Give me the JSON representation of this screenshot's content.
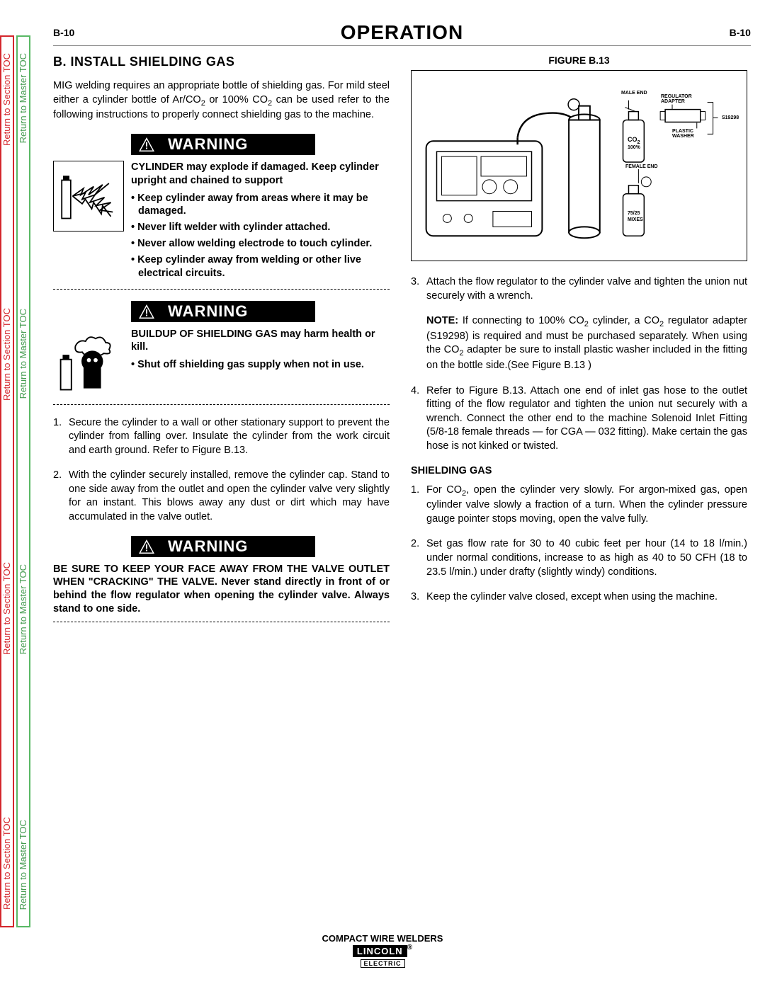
{
  "sidebar": {
    "red_label": "Return to Section TOC",
    "green_label": "Return to Master TOC"
  },
  "header": {
    "page_left": "B-10",
    "title": "OPERATION",
    "page_right": "B-10"
  },
  "left": {
    "section_title": "B. INSTALL SHIELDING GAS",
    "intro_html": "MIG welding requires an appropriate bottle of shielding gas. For mild steel either a cylinder bottle of Ar/CO<span class='sub'>2</span> or 100% CO<span class='sub'>2</span> can be used refer to the following instructions to properly connect shielding gas to the machine.",
    "warning_label": "WARNING",
    "warn1_head": "CYLINDER may explode if damaged. Keep cylinder upright and chained to support",
    "warn1_b1": "Keep cylinder away from areas where it may be damaged.",
    "warn1_b2": "Never lift welder with cylinder attached.",
    "warn1_b3": "Never allow welding electrode to touch cylinder.",
    "warn1_b4": "Keep cylinder away from welding or other live electrical circuits.",
    "warn2_head": "BUILDUP OF SHIELDING GAS may harm health or kill.",
    "warn2_b1": "Shut off shielding gas supply when not in use.",
    "step1": "Secure the cylinder to a wall or other stationary support to prevent the cylinder from falling over. Insulate the cylinder from the work circuit and earth ground. Refer to Figure B.13.",
    "step2": "With the cylinder securely installed, remove the cylinder cap. Stand to one side away from the outlet and open the cylinder valve very slightly for an instant. This blows away any dust or dirt which may have accumulated in the valve outlet.",
    "warn3_html": "BE SURE TO KEEP YOUR FACE AWAY FROM THE VALVE OUTLET WHEN \"CRACKING\" THE VALVE. Never stand directly in front of or behind the flow regulator when opening the cylinder valve. Always stand to one side."
  },
  "right": {
    "figure_title": "FIGURE  B.13",
    "fig_labels": {
      "male": "MALE END",
      "female": "FEMALE END",
      "co2": "CO",
      "co2_sub": "2",
      "pct": "100%",
      "mix1": "75/25",
      "mix2": "MIXES",
      "reg": "REGULATOR ADAPTER",
      "washer": "PLASTIC WASHER",
      "part": "S19298"
    },
    "step3": "Attach the flow regulator to the cylinder valve and tighten the union nut securely with a wrench.",
    "note_html": "<b>NOTE:</b> If connecting to 100% CO<span class='sub'>2</span> cylinder, a CO<span class='sub'>2</span> regulator adapter (S19298) is required and must be purchased separately.  When using the CO<span class='sub'>2</span> adapter be sure to install plastic washer included in the fitting on the bottle side.(See Figure B.13 )",
    "step4": "Refer to Figure B.13. Attach one end of inlet gas hose to the outlet fitting of the flow regulator and tighten the union nut securely with a wrench. Connect the other end to the machine Solenoid Inlet Fitting (5/8-18 female threads — for CGA — 032 fitting). Make certain the gas hose is not kinked or twisted.",
    "sub_heading": "SHIELDING GAS",
    "sg1_html": "For CO<span class='sub'>2</span>, open the cylinder very slowly. For argon-mixed gas, open cylinder valve slowly a fraction of a turn. When the cylinder pressure gauge pointer stops moving, open the valve fully.",
    "sg2": "Set gas flow rate for 30 to 40 cubic feet per hour (14 to 18 l/min.) under normal conditions, increase to as high as 40 to 50 CFH (18 to 23.5 l/min.) under drafty (slightly windy) conditions.",
    "sg3": "Keep the cylinder valve closed, except when using the machine."
  },
  "footer": {
    "line1": "COMPACT WIRE WELDERS",
    "logo": "LINCOLN",
    "logo_sub": "ELECTRIC"
  }
}
